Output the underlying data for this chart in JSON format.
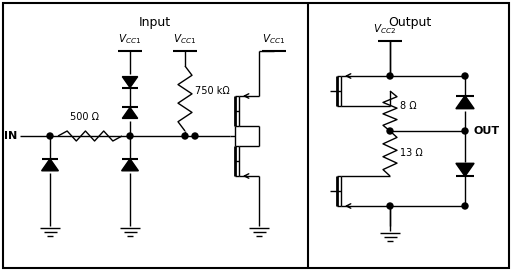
{
  "title_input": "Input",
  "title_output": "Output",
  "label_in": "IN",
  "label_out": "OUT",
  "label_vcc1": "$V_{CC1}$",
  "label_vcc2": "$V_{CC2}$",
  "label_500": "500 Ω",
  "label_750": "750 kΩ",
  "label_8": "8 Ω",
  "label_13": "13 Ω",
  "bg_color": "#ffffff",
  "line_color": "#000000",
  "fig_width": 5.12,
  "fig_height": 2.71
}
